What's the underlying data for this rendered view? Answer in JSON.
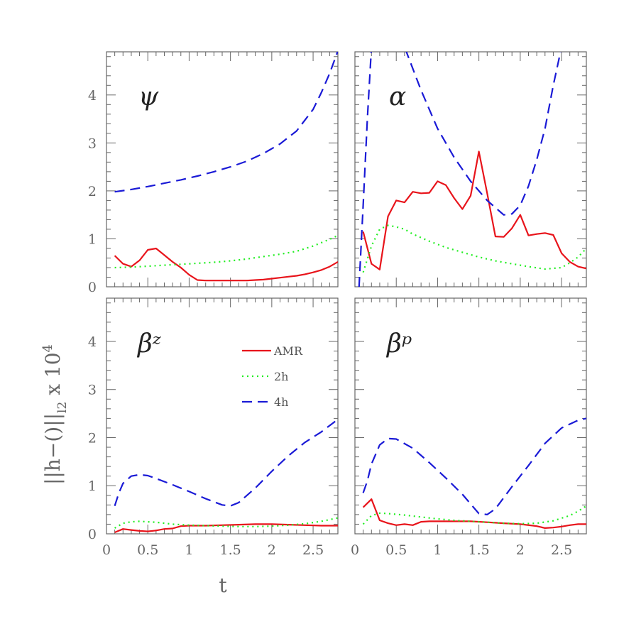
{
  "chart_data": {
    "type": "line",
    "xlabel": "t",
    "ylabel": "||h−()||_l2 x 10^4",
    "ylabel_parts": {
      "base": "||h−()||",
      "sub": "l2",
      "mid": " x 10",
      "sup": "4"
    },
    "xlim": [
      0,
      2.8
    ],
    "ylim": [
      0,
      4.9
    ],
    "x_ticks": [
      "0",
      "0.5",
      "1",
      "1.5",
      "2",
      "2.5"
    ],
    "x_tick_values": [
      0,
      0.5,
      1,
      1.5,
      2,
      2.5
    ],
    "y_ticks": [
      "0",
      "1",
      "2",
      "3",
      "4"
    ],
    "y_tick_values": [
      0,
      1,
      2,
      3,
      4
    ],
    "legend": {
      "placement": "upper-center of bottom-left panel",
      "entries": [
        "AMR",
        "2h",
        "4h"
      ]
    },
    "colors": {
      "AMR": "#e8141b",
      "2h": "#22ee22",
      "4h": "#1a1ad6"
    },
    "panels": [
      {
        "label": "ψ",
        "series": [
          {
            "name": "AMR",
            "x": [
              0.1,
              0.2,
              0.3,
              0.4,
              0.5,
              0.6,
              0.7,
              0.8,
              0.9,
              1.0,
              1.1,
              1.2,
              1.3,
              1.4,
              1.5,
              1.6,
              1.7,
              1.8,
              1.9,
              2.0,
              2.1,
              2.2,
              2.3,
              2.4,
              2.5,
              2.6,
              2.7,
              2.8
            ],
            "values": [
              0.65,
              0.48,
              0.42,
              0.55,
              0.77,
              0.8,
              0.66,
              0.52,
              0.4,
              0.25,
              0.14,
              0.13,
              0.13,
              0.13,
              0.13,
              0.13,
              0.13,
              0.14,
              0.15,
              0.17,
              0.19,
              0.21,
              0.23,
              0.26,
              0.3,
              0.35,
              0.42,
              0.52
            ]
          },
          {
            "name": "2h",
            "x": [
              0.1,
              0.3,
              0.5,
              0.7,
              0.9,
              1.1,
              1.3,
              1.5,
              1.7,
              1.9,
              2.1,
              2.3,
              2.5,
              2.6,
              2.7,
              2.8
            ],
            "values": [
              0.4,
              0.41,
              0.43,
              0.45,
              0.47,
              0.49,
              0.51,
              0.54,
              0.58,
              0.63,
              0.68,
              0.74,
              0.85,
              0.92,
              0.99,
              1.07
            ]
          },
          {
            "name": "4h",
            "x": [
              0.1,
              0.3,
              0.5,
              0.7,
              0.9,
              1.1,
              1.3,
              1.5,
              1.7,
              1.9,
              2.1,
              2.3,
              2.5,
              2.6,
              2.7,
              2.8
            ],
            "values": [
              1.98,
              2.03,
              2.09,
              2.16,
              2.23,
              2.31,
              2.4,
              2.5,
              2.62,
              2.78,
              2.98,
              3.25,
              3.7,
              4.05,
              4.45,
              4.92
            ]
          }
        ]
      },
      {
        "label": "α",
        "series": [
          {
            "name": "AMR",
            "x": [
              0.1,
              0.2,
              0.3,
              0.4,
              0.5,
              0.6,
              0.7,
              0.8,
              0.9,
              1.0,
              1.1,
              1.2,
              1.3,
              1.4,
              1.5,
              1.6,
              1.7,
              1.8,
              1.9,
              2.0,
              2.1,
              2.2,
              2.3,
              2.4,
              2.5,
              2.6,
              2.7,
              2.8
            ],
            "values": [
              1.15,
              0.48,
              0.36,
              1.47,
              1.8,
              1.76,
              1.98,
              1.95,
              1.96,
              2.2,
              2.12,
              1.85,
              1.62,
              1.9,
              2.82,
              1.95,
              1.05,
              1.04,
              1.22,
              1.5,
              1.07,
              1.1,
              1.12,
              1.08,
              0.7,
              0.52,
              0.42,
              0.38
            ]
          },
          {
            "name": "2h",
            "x": [
              0.1,
              0.2,
              0.3,
              0.4,
              0.5,
              0.6,
              0.7,
              0.9,
              1.1,
              1.3,
              1.5,
              1.7,
              1.9,
              2.1,
              2.3,
              2.5,
              2.6,
              2.7,
              2.8
            ],
            "values": [
              0.3,
              0.85,
              1.2,
              1.28,
              1.25,
              1.2,
              1.1,
              0.95,
              0.82,
              0.72,
              0.62,
              0.54,
              0.48,
              0.42,
              0.37,
              0.4,
              0.5,
              0.62,
              0.8
            ]
          },
          {
            "name": "4h",
            "x": [
              0.05,
              0.1,
              0.15,
              0.2,
              0.3,
              0.4,
              0.6,
              0.8,
              1.0,
              1.2,
              1.4,
              1.6,
              1.8,
              1.9,
              2.0,
              2.1,
              2.2,
              2.3,
              2.4,
              2.5
            ],
            "values": [
              0.0,
              1.7,
              3.5,
              5.0,
              6.5,
              6.0,
              5.0,
              4.1,
              3.3,
              2.7,
              2.2,
              1.8,
              1.5,
              1.52,
              1.7,
              2.1,
              2.65,
              3.3,
              4.2,
              5.0
            ]
          }
        ]
      },
      {
        "label": "βᶻ",
        "series": [
          {
            "name": "AMR",
            "x": [
              0.1,
              0.2,
              0.3,
              0.4,
              0.5,
              0.6,
              0.7,
              0.8,
              0.9,
              1.0,
              1.2,
              1.4,
              1.6,
              1.8,
              2.0,
              2.2,
              2.4,
              2.6,
              2.8
            ],
            "values": [
              0.03,
              0.1,
              0.08,
              0.06,
              0.05,
              0.07,
              0.1,
              0.11,
              0.16,
              0.17,
              0.17,
              0.18,
              0.19,
              0.2,
              0.2,
              0.19,
              0.18,
              0.17,
              0.17
            ]
          },
          {
            "name": "2h",
            "x": [
              0.1,
              0.2,
              0.3,
              0.4,
              0.5,
              0.6,
              0.8,
              1.0,
              1.2,
              1.4,
              1.6,
              1.8,
              2.0,
              2.2,
              2.4,
              2.6,
              2.8
            ],
            "values": [
              0.12,
              0.22,
              0.25,
              0.26,
              0.25,
              0.24,
              0.2,
              0.18,
              0.17,
              0.16,
              0.15,
              0.15,
              0.16,
              0.18,
              0.21,
              0.26,
              0.33
            ]
          },
          {
            "name": "4h",
            "x": [
              0.1,
              0.15,
              0.2,
              0.3,
              0.4,
              0.5,
              0.6,
              0.8,
              1.0,
              1.2,
              1.4,
              1.5,
              1.6,
              1.8,
              2.0,
              2.2,
              2.4,
              2.6,
              2.8
            ],
            "values": [
              0.58,
              0.85,
              1.05,
              1.2,
              1.23,
              1.21,
              1.15,
              1.02,
              0.88,
              0.73,
              0.6,
              0.58,
              0.65,
              0.95,
              1.3,
              1.62,
              1.9,
              2.12,
              2.38
            ]
          }
        ]
      },
      {
        "label": "βᵖ",
        "series": [
          {
            "name": "AMR",
            "x": [
              0.1,
              0.2,
              0.3,
              0.4,
              0.5,
              0.6,
              0.7,
              0.8,
              0.9,
              1.0,
              1.2,
              1.4,
              1.6,
              1.8,
              2.0,
              2.2,
              2.3,
              2.4,
              2.5,
              2.6,
              2.7,
              2.8
            ],
            "values": [
              0.55,
              0.72,
              0.28,
              0.22,
              0.18,
              0.2,
              0.18,
              0.25,
              0.26,
              0.26,
              0.26,
              0.26,
              0.24,
              0.22,
              0.2,
              0.16,
              0.12,
              0.13,
              0.15,
              0.18,
              0.2,
              0.2
            ]
          },
          {
            "name": "2h",
            "x": [
              0.1,
              0.2,
              0.3,
              0.4,
              0.6,
              0.8,
              1.0,
              1.2,
              1.4,
              1.6,
              1.8,
              2.0,
              2.2,
              2.4,
              2.6,
              2.7,
              2.8
            ],
            "values": [
              0.2,
              0.38,
              0.43,
              0.42,
              0.39,
              0.35,
              0.31,
              0.28,
              0.26,
              0.24,
              0.22,
              0.21,
              0.22,
              0.27,
              0.38,
              0.47,
              0.58
            ]
          },
          {
            "name": "4h",
            "x": [
              0.1,
              0.15,
              0.2,
              0.3,
              0.4,
              0.5,
              0.7,
              0.9,
              1.1,
              1.3,
              1.5,
              1.6,
              1.7,
              1.9,
              2.1,
              2.3,
              2.5,
              2.7,
              2.8
            ],
            "values": [
              0.85,
              1.1,
              1.45,
              1.85,
              1.98,
              1.97,
              1.78,
              1.48,
              1.16,
              0.82,
              0.42,
              0.4,
              0.52,
              0.98,
              1.42,
              1.88,
              2.2,
              2.36,
              2.4
            ]
          }
        ]
      }
    ]
  }
}
